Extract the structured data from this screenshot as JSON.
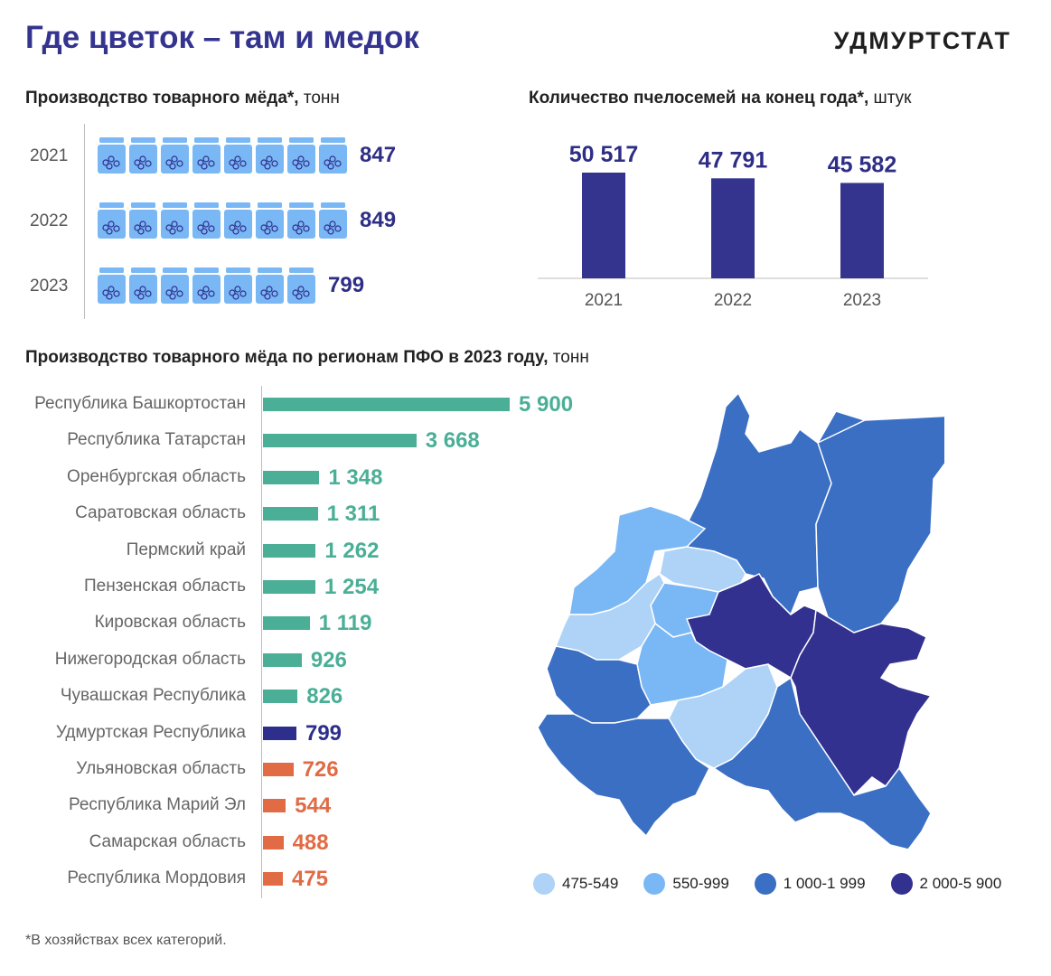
{
  "header": {
    "title": "Где цветок – там и медок",
    "brand": "УДМУРТСТАТ"
  },
  "honey_section": {
    "title": "Производство товарного мёда*,",
    "unit": "тонн"
  },
  "bees_section": {
    "title": "Количество пчелосемей на конец года*,",
    "unit": "штук"
  },
  "regions_section": {
    "title": "Производство товарного мёда по регионам ПФО в 2023 году,",
    "unit": "тонн"
  },
  "footnote": "*В хозяйствах всех категорий.",
  "colors": {
    "accent": "#34348f",
    "jar": "#7ab8f5",
    "teal": "#4aaf96",
    "orange": "#e06b45",
    "udmurtia": "#2e2e8c"
  },
  "legend": [
    {
      "label": "475-549",
      "color": "#aed3f7"
    },
    {
      "label": "550-999",
      "color": "#7ab8f5"
    },
    {
      "label": "1 000-1 999",
      "color": "#3a6fc4"
    },
    {
      "label": "2 000-5 900",
      "color": "#33318f"
    }
  ],
  "chart_data": [
    {
      "type": "bar",
      "orientation": "horizontal",
      "title": "Производство товарного мёда*, тонн",
      "categories": [
        "2021",
        "2022",
        "2023"
      ],
      "values": [
        847,
        849,
        799
      ],
      "value_labels": [
        "847",
        "849",
        "799"
      ],
      "jar_counts": [
        8,
        8,
        7
      ]
    },
    {
      "type": "bar",
      "title": "Количество пчелосемей на конец года*, штук",
      "categories": [
        "2021",
        "2022",
        "2023"
      ],
      "values": [
        50517,
        47791,
        45582
      ],
      "value_labels": [
        "50 517",
        "47 791",
        "45 582"
      ]
    },
    {
      "type": "bar",
      "orientation": "horizontal",
      "title": "Производство товарного мёда по регионам ПФО в 2023 году, тонн",
      "categories": [
        "Республика Башкортостан",
        "Республика Татарстан",
        "Оренбургская область",
        "Саратовская область",
        "Пермский край",
        "Пензенская область",
        "Кировская область",
        "Нижегородская область",
        "Чувашская Республика",
        "Удмуртская Республика",
        "Ульяновская область",
        "Республика Марий Эл",
        "Самарская область",
        "Республика Мордовия"
      ],
      "values": [
        5900,
        3668,
        1348,
        1311,
        1262,
        1254,
        1119,
        926,
        826,
        799,
        726,
        544,
        488,
        475
      ],
      "value_labels": [
        "5 900",
        "3 668",
        "1 348",
        "1 311",
        "1 262",
        "1 254",
        "1 119",
        "926",
        "826",
        "799",
        "726",
        "544",
        "488",
        "475"
      ],
      "bar_colors": [
        "#4aaf96",
        "#4aaf96",
        "#4aaf96",
        "#4aaf96",
        "#4aaf96",
        "#4aaf96",
        "#4aaf96",
        "#4aaf96",
        "#4aaf96",
        "#2e2e8c",
        "#e06b45",
        "#e06b45",
        "#e06b45",
        "#e06b45"
      ]
    }
  ]
}
